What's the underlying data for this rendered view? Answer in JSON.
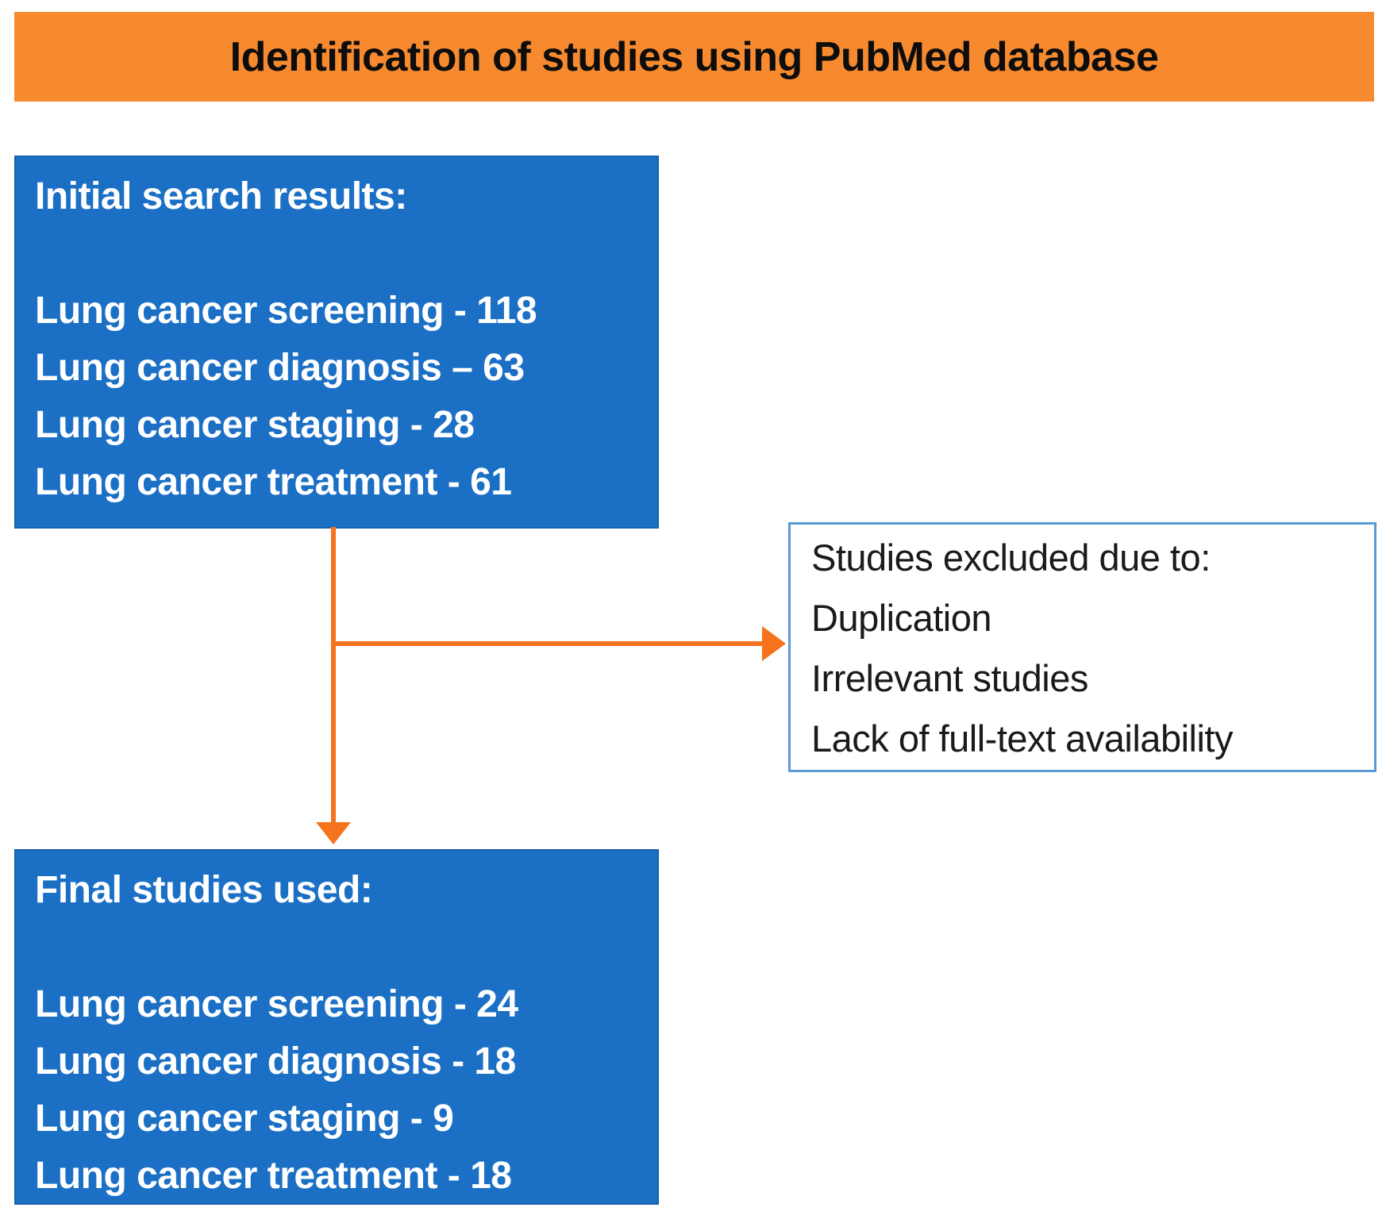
{
  "banner": {
    "title": "Identification of studies using PubMed database"
  },
  "boxes": {
    "initial": {
      "title": "Initial search results:",
      "items": [
        "Lung cancer screening - 118",
        "Lung cancer diagnosis – 63",
        "Lung cancer staging - 28",
        "Lung cancer treatment - 61"
      ]
    },
    "excluded": {
      "title": "Studies excluded due to:",
      "items": [
        "Duplication",
        "Irrelevant studies",
        "Lack of full-text availability"
      ]
    },
    "final": {
      "title": "Final studies used:",
      "items": [
        "Lung cancer screening - 24",
        "Lung cancer diagnosis - 18",
        "Lung cancer staging - 9",
        "Lung cancer treatment - 18"
      ]
    }
  },
  "colors": {
    "banner_bg": "#F78A2F",
    "banner_text": "#0D0D0D",
    "box_blue": "#1B70C5",
    "box_text": "#FFFFFF",
    "excluded_border": "#5B9BD5",
    "excluded_text": "#1A1A1A",
    "arrow_orange": "#F4731C",
    "page_bg": "#FFFFFF"
  }
}
